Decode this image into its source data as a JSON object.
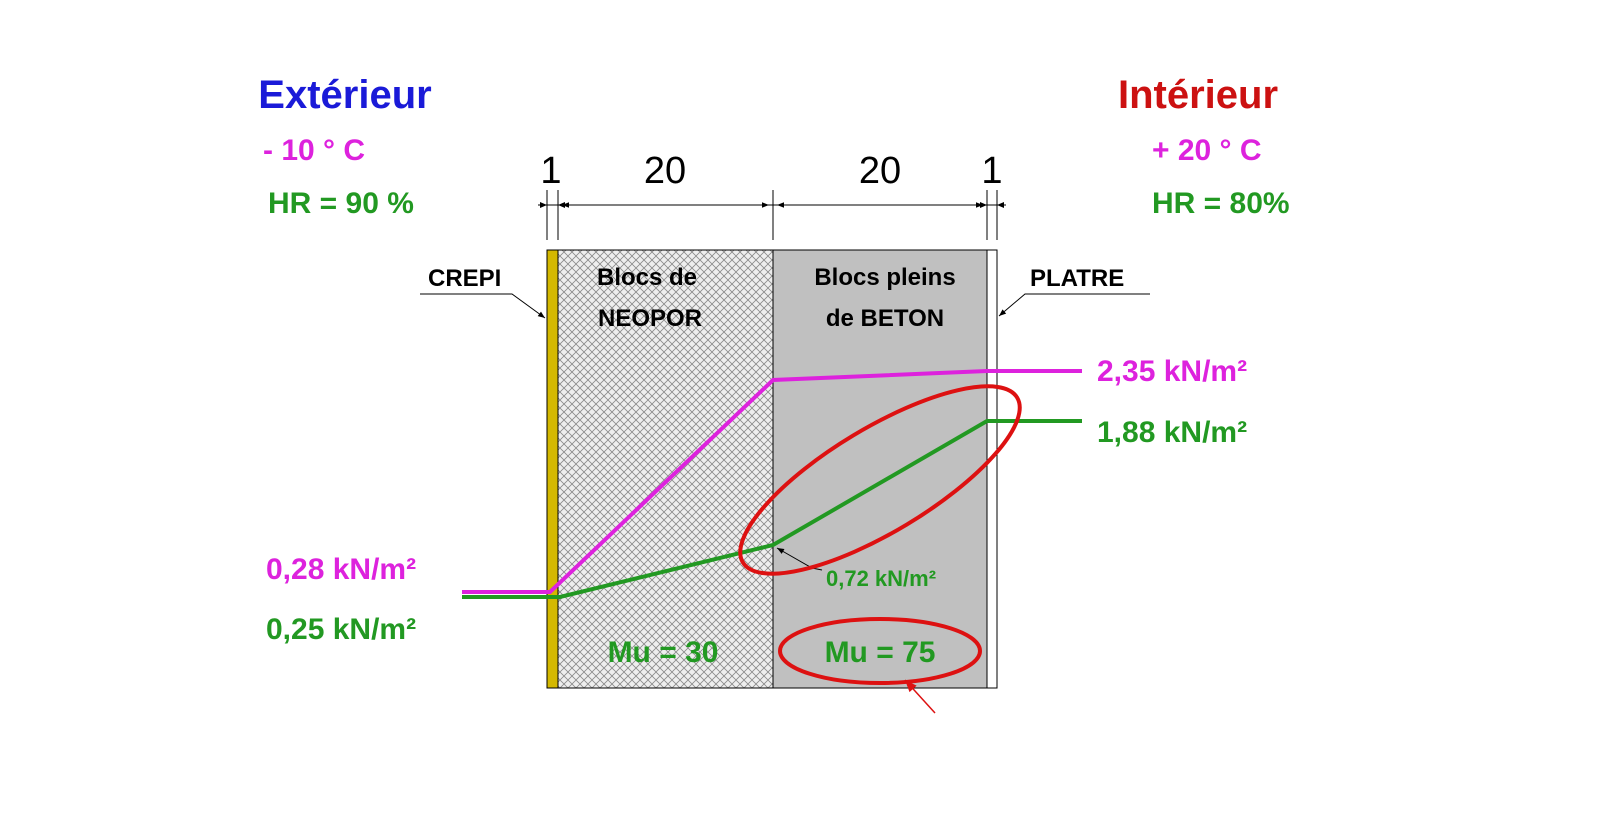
{
  "exterior": {
    "title": "Extérieur",
    "temperature": "- 10 ° C",
    "humidity": "HR = 90 %",
    "pressure_saturation": "0,28 kN/m²",
    "pressure_vapour": "0,25 kN/m²"
  },
  "interior": {
    "title": "Intérieur",
    "temperature": "+ 20 ° C",
    "humidity": "HR = 80%",
    "pressure_saturation": "2,35 kN/m²",
    "pressure_vapour": "1,88 kN/m²"
  },
  "dimensions": [
    "1",
    "20",
    "20",
    "1"
  ],
  "layers": {
    "crepi": "CREPI",
    "neopor_line1": "Blocs de",
    "neopor_line2": "NEOPOR",
    "neopor_mu": "Mu = 30",
    "beton_line1": "Blocs pleins",
    "beton_line2": "de BETON",
    "beton_mu": "Mu = 75",
    "platre": "PLATRE"
  },
  "interface_pressure": "0,72 kN/m²",
  "colors": {
    "exterior_title": "#1a1ad8",
    "interior_title": "#cc1111",
    "saturation_line": "#dd22dd",
    "vapour_line": "#229922",
    "highlight": "#dd1111",
    "crepi": "#d4b800",
    "beton": "#c0c0c0"
  }
}
